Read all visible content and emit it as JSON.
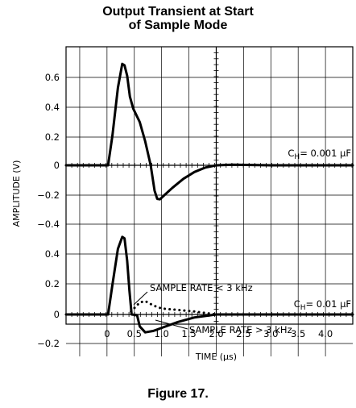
{
  "chart_data": {
    "type": "line",
    "title_line1": "Output Transient at Start",
    "title_line2": "of Sample Mode",
    "caption": "Figure 17.",
    "xlabel": "TIME (μs)",
    "ylabel": "AMPLITUDE (V)",
    "x_ticks": [
      "0",
      "0.5",
      "1.0",
      "1.5",
      "2.0",
      "2.5",
      "3.0",
      "3.5",
      "4.0"
    ],
    "xlim": [
      -0.75,
      4.5
    ],
    "grid": true,
    "panels": [
      {
        "name": "top",
        "y_ticks": [
          "0.6",
          "0.4",
          "0.2",
          "0",
          "−0.2"
        ],
        "ylim": [
          -0.3,
          0.78
        ],
        "annotation": "C_H= 0.001 μF",
        "annotation_parts": {
          "c": "C",
          "sub": "H",
          "value": "= 0.001 μF"
        },
        "series": [
          {
            "style": "solid",
            "points": [
              [
                -0.75,
                0
              ],
              [
                0.02,
                0
              ],
              [
                0.1,
                0.2
              ],
              [
                0.2,
                0.52
              ],
              [
                0.28,
                0.68
              ],
              [
                0.32,
                0.67
              ],
              [
                0.37,
                0.6
              ],
              [
                0.42,
                0.46
              ],
              [
                0.48,
                0.38
              ],
              [
                0.6,
                0.29
              ],
              [
                0.7,
                0.16
              ],
              [
                0.8,
                0.0
              ],
              [
                0.87,
                -0.17
              ],
              [
                0.92,
                -0.225
              ],
              [
                0.97,
                -0.228
              ],
              [
                1.05,
                -0.2
              ],
              [
                1.2,
                -0.15
              ],
              [
                1.4,
                -0.09
              ],
              [
                1.6,
                -0.045
              ],
              [
                1.8,
                -0.015
              ],
              [
                2.0,
                0.0
              ],
              [
                2.3,
                0.004
              ],
              [
                3.0,
                0.0
              ],
              [
                4.5,
                0.0
              ]
            ]
          }
        ]
      },
      {
        "name": "bottom",
        "y_ticks": [
          "−0.4",
          "0.4",
          "0.2",
          "0",
          "−0.2"
        ],
        "ylim": [
          -0.2,
          0.6
        ],
        "annotation": "C_H= 0.01 μF",
        "annotation_parts": {
          "c": "C",
          "sub": "H",
          "value": "= 0.01 μF"
        },
        "series": [
          {
            "name": "SAMPLE RATE > 3 kHz",
            "style": "solid",
            "points": [
              [
                -0.75,
                0
              ],
              [
                0.02,
                0
              ],
              [
                0.1,
                0.2
              ],
              [
                0.2,
                0.44
              ],
              [
                0.28,
                0.52
              ],
              [
                0.32,
                0.51
              ],
              [
                0.37,
                0.36
              ],
              [
                0.41,
                0.16
              ],
              [
                0.45,
                0.0
              ],
              [
                0.55,
                -0.005
              ],
              [
                0.6,
                -0.08
              ],
              [
                0.7,
                -0.12
              ],
              [
                0.85,
                -0.11
              ],
              [
                1.0,
                -0.09
              ],
              [
                1.3,
                -0.05
              ],
              [
                1.6,
                -0.02
              ],
              [
                2.0,
                0.0
              ],
              [
                4.5,
                0.0
              ]
            ]
          },
          {
            "name": "SAMPLE RATE < 3 kHz",
            "style": "dotted",
            "points": [
              [
                0.44,
                0.02
              ],
              [
                0.52,
                0.05
              ],
              [
                0.6,
                0.08
              ],
              [
                0.7,
                0.09
              ],
              [
                0.85,
                0.06
              ],
              [
                1.0,
                0.04
              ],
              [
                1.3,
                0.03
              ],
              [
                1.6,
                0.02
              ],
              [
                2.0,
                0.0
              ]
            ]
          }
        ]
      }
    ]
  }
}
